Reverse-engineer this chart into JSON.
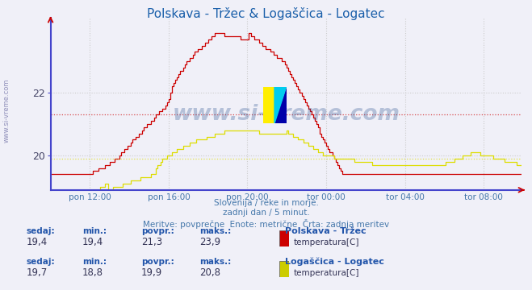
{
  "title": "Polskava - Tržec & Logaščica - Logatec",
  "title_color": "#1a5faa",
  "bg_color": "#f0f0f8",
  "plot_bg_color": "#f0f0f8",
  "grid_color": "#cccccc",
  "x_spine_color": "#4444cc",
  "y_spine_color": "#4444cc",
  "ytick_values": [
    20,
    22
  ],
  "ytick_labels": [
    "20",
    "22"
  ],
  "ylim": [
    18.9,
    24.4
  ],
  "xlabel_ticks": [
    "pon 12:00",
    "pon 16:00",
    "pon 20:00",
    "tor 00:00",
    "tor 04:00",
    "tor 08:00"
  ],
  "n_points": 288,
  "subtitle_lines": [
    "Slovenija / reke in morje.",
    "zadnji dan / 5 minut.",
    "Meritve: povprečne  Enote: metrične  Črta: zadnja meritev"
  ],
  "subtitle_color": "#4477aa",
  "watermark_text": "www.si-vreme.com",
  "watermark_color": "#1a4488",
  "watermark_alpha": 0.28,
  "series1_color": "#cc0000",
  "series1_avg": 21.3,
  "series1_min": 19.4,
  "series1_max": 23.9,
  "series2_color": "#dddd00",
  "series2_avg": 19.9,
  "series2_min": 18.8,
  "series2_max": 20.8,
  "info": [
    {
      "sedaj": "19,4",
      "min": "19,4",
      "povpr": "21,3",
      "maks": "23,9",
      "name": "Polskava - Tržec",
      "unit": "temperatura[C]",
      "color": "#cc0000"
    },
    {
      "sedaj": "19,7",
      "min": "18,8",
      "povpr": "19,9",
      "maks": "20,8",
      "name": "Logaščica - Logatec",
      "unit": "temperatura[C]",
      "color": "#cccc00"
    }
  ],
  "left_label": "www.si-vreme.com",
  "left_label_color": "#7777aa"
}
